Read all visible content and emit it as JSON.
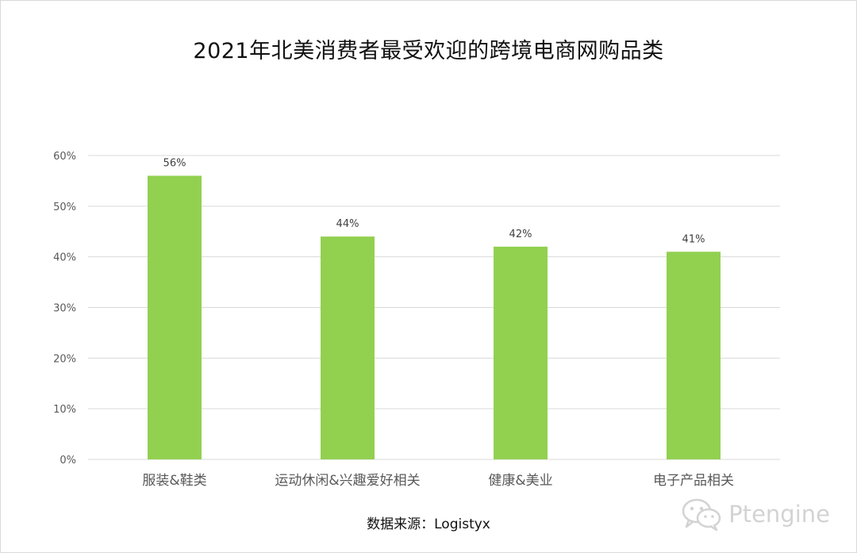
{
  "chart_data": {
    "type": "bar",
    "title": "2021年北美消费者最受欢迎的跨境电商网购品类",
    "categories": [
      "服装&鞋类",
      "运动休闲&兴趣爱好相关",
      "健康&美业",
      "电子产品相关"
    ],
    "values": [
      56,
      44,
      42,
      41
    ],
    "data_labels": [
      "56%",
      "44%",
      "42%",
      "41%"
    ],
    "yticks": [
      "0%",
      "10%",
      "20%",
      "30%",
      "40%",
      "50%",
      "60%"
    ],
    "ylim": [
      0,
      60
    ],
    "grid": true,
    "bar_color": "#92d050",
    "xlabel": "",
    "ylabel": ""
  },
  "source_text": "数据来源：Logistyx",
  "watermark": {
    "text": "Ptengine",
    "icon": "wechat-icon"
  },
  "colors": {
    "gridline": "#d9d9d9",
    "axis_text": "#595959",
    "label_text": "#404040"
  }
}
